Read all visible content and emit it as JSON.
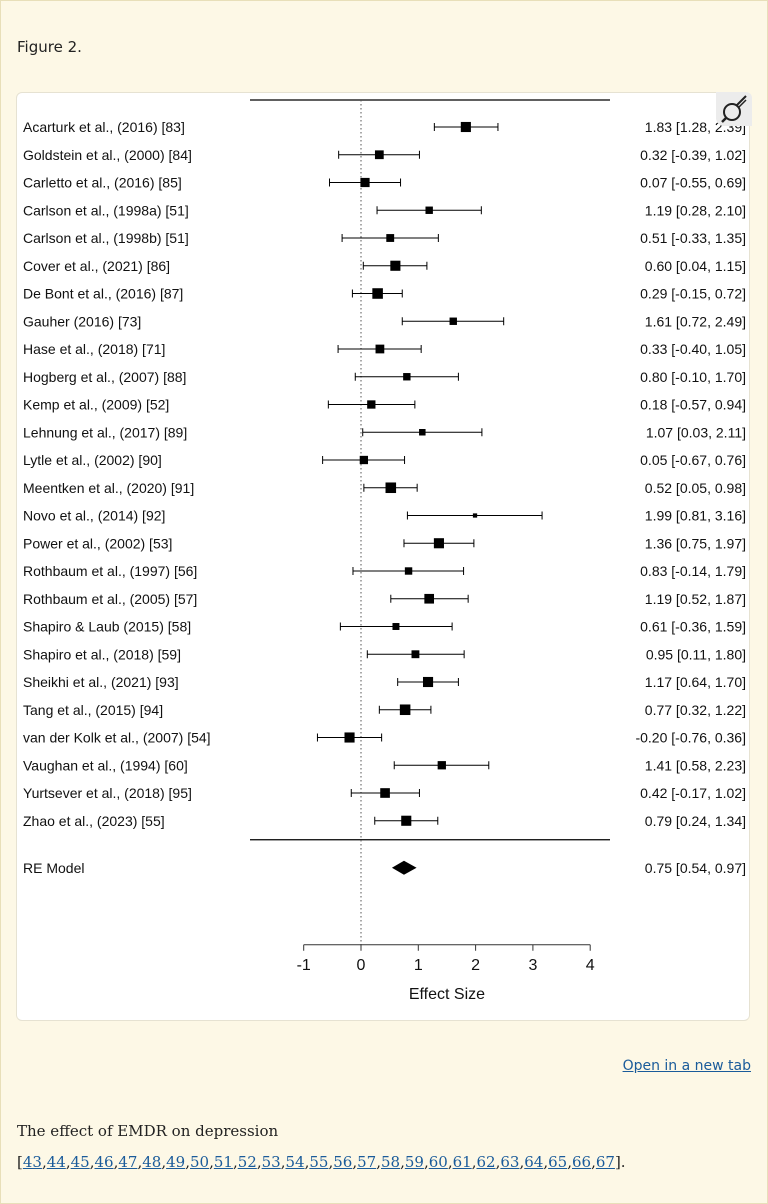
{
  "figure_label": "Figure 2.",
  "open_link": "Open in a new tab",
  "caption": {
    "text": "The effect of EMDR on depression",
    "ref_open": "[",
    "ref_close": "].",
    "refs": [
      "43",
      "44",
      "45",
      "46",
      "47",
      "48",
      "49",
      "50",
      "51",
      "52",
      "53",
      "54",
      "55",
      "56",
      "57",
      "58",
      "59",
      "60",
      "61",
      "62",
      "63",
      "64",
      "65",
      "66",
      "67"
    ]
  },
  "icons": {
    "zoom": "magnifier-icon"
  },
  "colors": {
    "page_bg": "#fdf8e6",
    "link": "#1a5b9a",
    "ink": "#000000"
  },
  "chart_data": {
    "type": "forest",
    "xlabel": "Effect Size",
    "xlim": [
      -1,
      4
    ],
    "ticks": [
      -1,
      0,
      1,
      2,
      3,
      4
    ],
    "tick_labels": [
      "-1",
      "0",
      "1",
      "2",
      "3",
      "4"
    ],
    "reference_line": 0,
    "studies": [
      {
        "label": "Acarturk et al., (2016) [83]",
        "est": 1.83,
        "lo": 1.28,
        "hi": 2.39,
        "ci_text": "1.83 [1.28, 2.39]",
        "weight": 0.9
      },
      {
        "label": "Goldstein et al., (2000) [84]",
        "est": 0.32,
        "lo": -0.39,
        "hi": 1.02,
        "ci_text": "0.32 [-0.39, 1.02]",
        "weight": 0.75
      },
      {
        "label": "Carletto et al., (2016) [85]",
        "est": 0.07,
        "lo": -0.55,
        "hi": 0.69,
        "ci_text": "0.07 [-0.55, 0.69]",
        "weight": 0.8
      },
      {
        "label": "Carlson et al., (1998a) [51]",
        "est": 1.19,
        "lo": 0.28,
        "hi": 2.1,
        "ci_text": "1.19 [0.28, 2.10]",
        "weight": 0.6
      },
      {
        "label": "Carlson et al., (1998b) [51]",
        "est": 0.51,
        "lo": -0.33,
        "hi": 1.35,
        "ci_text": "0.51 [-0.33, 1.35]",
        "weight": 0.65
      },
      {
        "label": "Cover et al., (2021) [86]",
        "est": 0.6,
        "lo": 0.04,
        "hi": 1.15,
        "ci_text": "0.60 [0.04, 1.15]",
        "weight": 0.9
      },
      {
        "label": "De Bont et al., (2016) [87]",
        "est": 0.29,
        "lo": -0.15,
        "hi": 0.72,
        "ci_text": "0.29 [-0.15, 0.72]",
        "weight": 0.95
      },
      {
        "label": "Gauher (2016) [73]",
        "est": 1.61,
        "lo": 0.72,
        "hi": 2.49,
        "ci_text": "1.61 [0.72, 2.49]",
        "weight": 0.6
      },
      {
        "label": "Hase et al., (2018) [71]",
        "est": 0.33,
        "lo": -0.4,
        "hi": 1.05,
        "ci_text": "0.33 [-0.40, 1.05]",
        "weight": 0.75
      },
      {
        "label": "Hogberg et al., (2007) [88]",
        "est": 0.8,
        "lo": -0.1,
        "hi": 1.7,
        "ci_text": "0.80 [-0.10, 1.70]",
        "weight": 0.6
      },
      {
        "label": "Kemp et al., (2009) [52]",
        "est": 0.18,
        "lo": -0.57,
        "hi": 0.94,
        "ci_text": "0.18 [-0.57, 0.94]",
        "weight": 0.7
      },
      {
        "label": "Lehnung et al., (2017) [89]",
        "est": 1.07,
        "lo": 0.03,
        "hi": 2.11,
        "ci_text": "1.07 [0.03, 2.11]",
        "weight": 0.5
      },
      {
        "label": "Lytle et al., (2002) [90]",
        "est": 0.05,
        "lo": -0.67,
        "hi": 0.76,
        "ci_text": "0.05 [-0.67, 0.76]",
        "weight": 0.7
      },
      {
        "label": "Meentken et al., (2020) [91]",
        "est": 0.52,
        "lo": 0.05,
        "hi": 0.98,
        "ci_text": "0.52 [0.05, 0.98]",
        "weight": 0.95
      },
      {
        "label": "Novo et al., (2014) [92]",
        "est": 1.99,
        "lo": 0.81,
        "hi": 3.16,
        "ci_text": "1.99 [0.81, 3.16]",
        "weight": 0.25
      },
      {
        "label": "Power et al., (2002) [53]",
        "est": 1.36,
        "lo": 0.75,
        "hi": 1.97,
        "ci_text": "1.36 [0.75, 1.97]",
        "weight": 0.9
      },
      {
        "label": "Rothbaum et al., (1997) [56]",
        "est": 0.83,
        "lo": -0.14,
        "hi": 1.79,
        "ci_text": "0.83 [-0.14, 1.79]",
        "weight": 0.6
      },
      {
        "label": "Rothbaum et al., (2005) [57]",
        "est": 1.19,
        "lo": 0.52,
        "hi": 1.87,
        "ci_text": "1.19 [0.52, 1.87]",
        "weight": 0.85
      },
      {
        "label": "Shapiro & Laub (2015) [58]",
        "est": 0.61,
        "lo": -0.36,
        "hi": 1.59,
        "ci_text": "0.61 [-0.36, 1.59]",
        "weight": 0.55
      },
      {
        "label": "Shapiro et al., (2018) [59]",
        "est": 0.95,
        "lo": 0.11,
        "hi": 1.8,
        "ci_text": "0.95 [0.11, 1.80]",
        "weight": 0.65
      },
      {
        "label": "Sheikhi et al., (2021) [93]",
        "est": 1.17,
        "lo": 0.64,
        "hi": 1.7,
        "ci_text": "1.17 [0.64, 1.70]",
        "weight": 0.9
      },
      {
        "label": "Tang et al., (2015) [94]",
        "est": 0.77,
        "lo": 0.32,
        "hi": 1.22,
        "ci_text": "0.77 [0.32, 1.22]",
        "weight": 0.95
      },
      {
        "label": "van der Kolk et al., (2007) [54]",
        "est": -0.2,
        "lo": -0.76,
        "hi": 0.36,
        "ci_text": "-0.20 [-0.76, 0.36]",
        "weight": 0.9
      },
      {
        "label": "Vaughan et al., (1994) [60]",
        "est": 1.41,
        "lo": 0.58,
        "hi": 2.23,
        "ci_text": "1.41 [0.58, 2.23]",
        "weight": 0.7
      },
      {
        "label": "Yurtsever et al., (2018) [95]",
        "est": 0.42,
        "lo": -0.17,
        "hi": 1.02,
        "ci_text": "0.42 [-0.17, 1.02]",
        "weight": 0.85
      },
      {
        "label": "Zhao et al., (2023) [55]",
        "est": 0.79,
        "lo": 0.24,
        "hi": 1.34,
        "ci_text": "0.79 [0.24, 1.34]",
        "weight": 0.9
      }
    ],
    "summary": {
      "label": "RE Model",
      "est": 0.75,
      "lo": 0.54,
      "hi": 0.97,
      "ci_text": "0.75 [0.54, 0.97]"
    }
  }
}
